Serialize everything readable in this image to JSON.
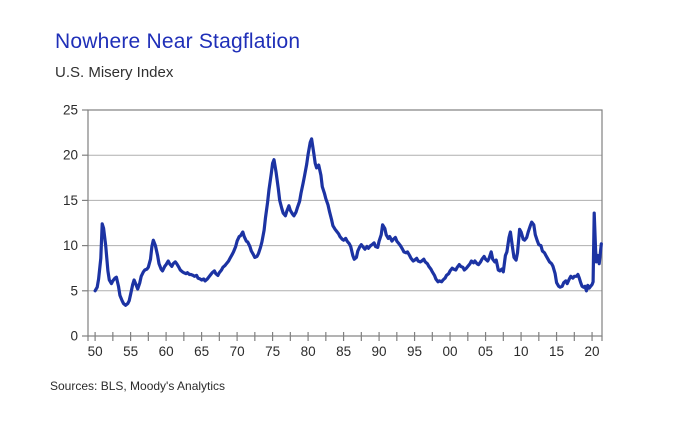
{
  "header": {
    "title": "Nowhere Near Stagflation",
    "subtitle": "U.S. Misery Index"
  },
  "footer": {
    "source": "Sources: BLS, Moody's Analytics"
  },
  "colors": {
    "title_blue": "#1F2FB8",
    "line_blue": "#1C33A3",
    "frame_gray": "#808080",
    "grid_gray": "#AFAFAF",
    "label_text": "#2B2B2B"
  },
  "chart_data": {
    "type": "line",
    "title": "Nowhere Near Stagflation",
    "subtitle": "U.S. Misery Index",
    "source": "Sources: BLS, Moody's Analytics",
    "xlabel": "",
    "ylabel": "",
    "grid": "horizontal",
    "legend": "none",
    "ylim": [
      0,
      25
    ],
    "y_ticks": [
      0,
      5,
      10,
      15,
      20,
      25
    ],
    "xlim": [
      1949.0,
      2021.4
    ],
    "x_minor_tick_start": 1950,
    "x_minor_tick_end": 2020,
    "x_minor_tick_step_years": 2.5,
    "x_tick_labels": [
      {
        "year": 1950,
        "label": "50"
      },
      {
        "year": 1955,
        "label": "55"
      },
      {
        "year": 1960,
        "label": "60"
      },
      {
        "year": 1965,
        "label": "65"
      },
      {
        "year": 1970,
        "label": "70"
      },
      {
        "year": 1975,
        "label": "75"
      },
      {
        "year": 1980,
        "label": "80"
      },
      {
        "year": 1985,
        "label": "85"
      },
      {
        "year": 1990,
        "label": "90"
      },
      {
        "year": 1995,
        "label": "95"
      },
      {
        "year": 2000,
        "label": "00"
      },
      {
        "year": 2005,
        "label": "05"
      },
      {
        "year": 2010,
        "label": "10"
      },
      {
        "year": 2015,
        "label": "15"
      },
      {
        "year": 2020,
        "label": "20"
      }
    ],
    "series": [
      {
        "name": "U.S. Misery Index",
        "color": "#1C33A3",
        "points": [
          [
            1950.0,
            5.0
          ],
          [
            1950.3,
            5.4
          ],
          [
            1950.5,
            6.3
          ],
          [
            1950.8,
            8.6
          ],
          [
            1951.0,
            12.4
          ],
          [
            1951.2,
            11.9
          ],
          [
            1951.5,
            10.0
          ],
          [
            1951.8,
            7.2
          ],
          [
            1952.0,
            6.2
          ],
          [
            1952.3,
            5.8
          ],
          [
            1952.5,
            6.1
          ],
          [
            1952.8,
            6.4
          ],
          [
            1953.0,
            6.5
          ],
          [
            1953.3,
            5.5
          ],
          [
            1953.5,
            4.5
          ],
          [
            1953.8,
            3.9
          ],
          [
            1954.0,
            3.6
          ],
          [
            1954.3,
            3.4
          ],
          [
            1954.6,
            3.6
          ],
          [
            1954.8,
            3.9
          ],
          [
            1955.0,
            4.6
          ],
          [
            1955.3,
            5.7
          ],
          [
            1955.5,
            6.2
          ],
          [
            1955.8,
            5.6
          ],
          [
            1956.0,
            5.2
          ],
          [
            1956.3,
            5.9
          ],
          [
            1956.5,
            6.6
          ],
          [
            1956.8,
            7.1
          ],
          [
            1957.0,
            7.3
          ],
          [
            1957.3,
            7.4
          ],
          [
            1957.5,
            7.6
          ],
          [
            1957.8,
            8.5
          ],
          [
            1958.0,
            9.9
          ],
          [
            1958.2,
            10.6
          ],
          [
            1958.5,
            10.0
          ],
          [
            1958.8,
            8.9
          ],
          [
            1959.0,
            8.0
          ],
          [
            1959.3,
            7.4
          ],
          [
            1959.5,
            7.2
          ],
          [
            1959.8,
            7.7
          ],
          [
            1960.0,
            7.9
          ],
          [
            1960.3,
            8.3
          ],
          [
            1960.5,
            8.0
          ],
          [
            1960.8,
            7.7
          ],
          [
            1961.0,
            8.0
          ],
          [
            1961.3,
            8.2
          ],
          [
            1961.5,
            8.0
          ],
          [
            1961.8,
            7.6
          ],
          [
            1962.0,
            7.3
          ],
          [
            1962.3,
            7.1
          ],
          [
            1962.5,
            7.0
          ],
          [
            1962.8,
            6.9
          ],
          [
            1963.0,
            7.0
          ],
          [
            1963.3,
            6.8
          ],
          [
            1963.5,
            6.8
          ],
          [
            1963.8,
            6.7
          ],
          [
            1964.0,
            6.6
          ],
          [
            1964.3,
            6.7
          ],
          [
            1964.5,
            6.4
          ],
          [
            1964.8,
            6.3
          ],
          [
            1965.0,
            6.2
          ],
          [
            1965.3,
            6.3
          ],
          [
            1965.5,
            6.1
          ],
          [
            1965.8,
            6.3
          ],
          [
            1966.0,
            6.5
          ],
          [
            1966.3,
            6.8
          ],
          [
            1966.5,
            7.0
          ],
          [
            1966.8,
            7.2
          ],
          [
            1967.0,
            6.9
          ],
          [
            1967.3,
            6.7
          ],
          [
            1967.5,
            7.0
          ],
          [
            1967.8,
            7.3
          ],
          [
            1968.0,
            7.6
          ],
          [
            1968.3,
            7.8
          ],
          [
            1968.5,
            8.0
          ],
          [
            1968.8,
            8.3
          ],
          [
            1969.0,
            8.6
          ],
          [
            1969.3,
            9.0
          ],
          [
            1969.5,
            9.3
          ],
          [
            1969.8,
            9.9
          ],
          [
            1970.0,
            10.5
          ],
          [
            1970.3,
            11.0
          ],
          [
            1970.5,
            11.1
          ],
          [
            1970.8,
            11.5
          ],
          [
            1971.0,
            11.0
          ],
          [
            1971.3,
            10.5
          ],
          [
            1971.5,
            10.4
          ],
          [
            1971.8,
            9.9
          ],
          [
            1972.0,
            9.4
          ],
          [
            1972.3,
            9.0
          ],
          [
            1972.5,
            8.7
          ],
          [
            1972.8,
            8.8
          ],
          [
            1973.0,
            9.1
          ],
          [
            1973.3,
            9.8
          ],
          [
            1973.5,
            10.4
          ],
          [
            1973.8,
            11.7
          ],
          [
            1974.0,
            13.1
          ],
          [
            1974.3,
            14.8
          ],
          [
            1974.5,
            16.2
          ],
          [
            1974.8,
            17.9
          ],
          [
            1975.0,
            19.1
          ],
          [
            1975.2,
            19.5
          ],
          [
            1975.5,
            18.1
          ],
          [
            1975.8,
            16.3
          ],
          [
            1976.0,
            15.0
          ],
          [
            1976.3,
            14.1
          ],
          [
            1976.5,
            13.6
          ],
          [
            1976.8,
            13.3
          ],
          [
            1977.0,
            13.8
          ],
          [
            1977.3,
            14.4
          ],
          [
            1977.5,
            13.9
          ],
          [
            1977.8,
            13.5
          ],
          [
            1978.0,
            13.3
          ],
          [
            1978.3,
            13.7
          ],
          [
            1978.5,
            14.2
          ],
          [
            1978.8,
            14.9
          ],
          [
            1979.0,
            15.8
          ],
          [
            1979.3,
            16.9
          ],
          [
            1979.5,
            17.7
          ],
          [
            1979.8,
            19.0
          ],
          [
            1980.0,
            20.1
          ],
          [
            1980.3,
            21.4
          ],
          [
            1980.5,
            21.8
          ],
          [
            1980.8,
            20.2
          ],
          [
            1981.0,
            19.1
          ],
          [
            1981.2,
            18.6
          ],
          [
            1981.5,
            18.9
          ],
          [
            1981.8,
            17.8
          ],
          [
            1982.0,
            16.5
          ],
          [
            1982.3,
            15.8
          ],
          [
            1982.5,
            15.2
          ],
          [
            1982.8,
            14.5
          ],
          [
            1983.0,
            13.8
          ],
          [
            1983.3,
            12.9
          ],
          [
            1983.5,
            12.2
          ],
          [
            1983.8,
            11.8
          ],
          [
            1984.0,
            11.6
          ],
          [
            1984.3,
            11.3
          ],
          [
            1984.5,
            11.0
          ],
          [
            1984.8,
            10.7
          ],
          [
            1985.0,
            10.6
          ],
          [
            1985.3,
            10.8
          ],
          [
            1985.5,
            10.5
          ],
          [
            1985.8,
            10.2
          ],
          [
            1986.0,
            9.9
          ],
          [
            1986.3,
            8.9
          ],
          [
            1986.5,
            8.5
          ],
          [
            1986.8,
            8.7
          ],
          [
            1987.0,
            9.4
          ],
          [
            1987.3,
            9.9
          ],
          [
            1987.5,
            10.1
          ],
          [
            1987.8,
            9.8
          ],
          [
            1988.0,
            9.6
          ],
          [
            1988.3,
            9.9
          ],
          [
            1988.5,
            9.7
          ],
          [
            1988.8,
            10.0
          ],
          [
            1989.0,
            10.1
          ],
          [
            1989.3,
            10.3
          ],
          [
            1989.5,
            9.9
          ],
          [
            1989.8,
            9.8
          ],
          [
            1990.0,
            10.5
          ],
          [
            1990.3,
            11.2
          ],
          [
            1990.5,
            12.3
          ],
          [
            1990.8,
            11.9
          ],
          [
            1991.0,
            11.2
          ],
          [
            1991.3,
            10.8
          ],
          [
            1991.5,
            11.0
          ],
          [
            1991.8,
            10.5
          ],
          [
            1992.0,
            10.7
          ],
          [
            1992.3,
            10.9
          ],
          [
            1992.5,
            10.5
          ],
          [
            1992.8,
            10.2
          ],
          [
            1993.0,
            10.0
          ],
          [
            1993.3,
            9.6
          ],
          [
            1993.5,
            9.3
          ],
          [
            1993.8,
            9.2
          ],
          [
            1994.0,
            9.3
          ],
          [
            1994.3,
            8.9
          ],
          [
            1994.5,
            8.6
          ],
          [
            1994.8,
            8.3
          ],
          [
            1995.0,
            8.4
          ],
          [
            1995.3,
            8.6
          ],
          [
            1995.5,
            8.3
          ],
          [
            1995.8,
            8.2
          ],
          [
            1996.0,
            8.3
          ],
          [
            1996.3,
            8.5
          ],
          [
            1996.5,
            8.2
          ],
          [
            1996.8,
            8.0
          ],
          [
            1997.0,
            7.7
          ],
          [
            1997.3,
            7.4
          ],
          [
            1997.5,
            7.1
          ],
          [
            1997.8,
            6.7
          ],
          [
            1998.0,
            6.3
          ],
          [
            1998.3,
            6.0
          ],
          [
            1998.5,
            6.1
          ],
          [
            1998.8,
            6.0
          ],
          [
            1999.0,
            6.2
          ],
          [
            1999.3,
            6.4
          ],
          [
            1999.5,
            6.7
          ],
          [
            1999.8,
            6.9
          ],
          [
            2000.0,
            7.2
          ],
          [
            2000.3,
            7.5
          ],
          [
            2000.5,
            7.4
          ],
          [
            2000.8,
            7.3
          ],
          [
            2001.0,
            7.6
          ],
          [
            2001.3,
            7.9
          ],
          [
            2001.5,
            7.7
          ],
          [
            2001.8,
            7.6
          ],
          [
            2002.0,
            7.3
          ],
          [
            2002.3,
            7.5
          ],
          [
            2002.5,
            7.7
          ],
          [
            2002.8,
            8.0
          ],
          [
            2003.0,
            8.3
          ],
          [
            2003.3,
            8.1
          ],
          [
            2003.5,
            8.3
          ],
          [
            2003.8,
            8.0
          ],
          [
            2004.0,
            7.9
          ],
          [
            2004.3,
            8.2
          ],
          [
            2004.5,
            8.5
          ],
          [
            2004.8,
            8.8
          ],
          [
            2005.0,
            8.5
          ],
          [
            2005.3,
            8.3
          ],
          [
            2005.5,
            8.6
          ],
          [
            2005.8,
            9.3
          ],
          [
            2006.0,
            8.5
          ],
          [
            2006.3,
            8.2
          ],
          [
            2006.5,
            8.4
          ],
          [
            2006.8,
            7.3
          ],
          [
            2007.0,
            7.2
          ],
          [
            2007.3,
            7.4
          ],
          [
            2007.5,
            7.1
          ],
          [
            2007.8,
            8.9
          ],
          [
            2008.0,
            9.3
          ],
          [
            2008.3,
            10.9
          ],
          [
            2008.5,
            11.5
          ],
          [
            2008.8,
            9.8
          ],
          [
            2009.0,
            8.7
          ],
          [
            2009.3,
            8.4
          ],
          [
            2009.5,
            9.2
          ],
          [
            2009.8,
            11.8
          ],
          [
            2010.0,
            11.5
          ],
          [
            2010.3,
            10.7
          ],
          [
            2010.5,
            10.6
          ],
          [
            2010.8,
            10.9
          ],
          [
            2011.0,
            11.5
          ],
          [
            2011.3,
            12.2
          ],
          [
            2011.5,
            12.6
          ],
          [
            2011.8,
            12.3
          ],
          [
            2012.0,
            11.2
          ],
          [
            2012.3,
            10.5
          ],
          [
            2012.5,
            10.1
          ],
          [
            2012.8,
            10.0
          ],
          [
            2013.0,
            9.4
          ],
          [
            2013.3,
            9.2
          ],
          [
            2013.5,
            8.9
          ],
          [
            2013.8,
            8.5
          ],
          [
            2014.0,
            8.2
          ],
          [
            2014.3,
            8.0
          ],
          [
            2014.5,
            7.7
          ],
          [
            2014.8,
            6.9
          ],
          [
            2015.0,
            5.9
          ],
          [
            2015.3,
            5.5
          ],
          [
            2015.5,
            5.4
          ],
          [
            2015.8,
            5.5
          ],
          [
            2016.0,
            5.9
          ],
          [
            2016.3,
            6.1
          ],
          [
            2016.5,
            5.8
          ],
          [
            2016.8,
            6.3
          ],
          [
            2017.0,
            6.6
          ],
          [
            2017.3,
            6.4
          ],
          [
            2017.5,
            6.6
          ],
          [
            2017.8,
            6.6
          ],
          [
            2018.0,
            6.8
          ],
          [
            2018.2,
            6.4
          ],
          [
            2018.4,
            5.9
          ],
          [
            2018.6,
            5.5
          ],
          [
            2018.8,
            5.4
          ],
          [
            2019.0,
            5.5
          ],
          [
            2019.2,
            5.0
          ],
          [
            2019.4,
            5.6
          ],
          [
            2019.6,
            5.3
          ],
          [
            2019.8,
            5.5
          ],
          [
            2020.0,
            5.7
          ],
          [
            2020.15,
            6.0
          ],
          [
            2020.3,
            13.6
          ],
          [
            2020.5,
            9.5
          ],
          [
            2020.6,
            8.2
          ],
          [
            2020.8,
            8.9
          ],
          [
            2021.0,
            8.0
          ],
          [
            2021.15,
            9.0
          ],
          [
            2021.3,
            10.2
          ]
        ]
      }
    ]
  }
}
